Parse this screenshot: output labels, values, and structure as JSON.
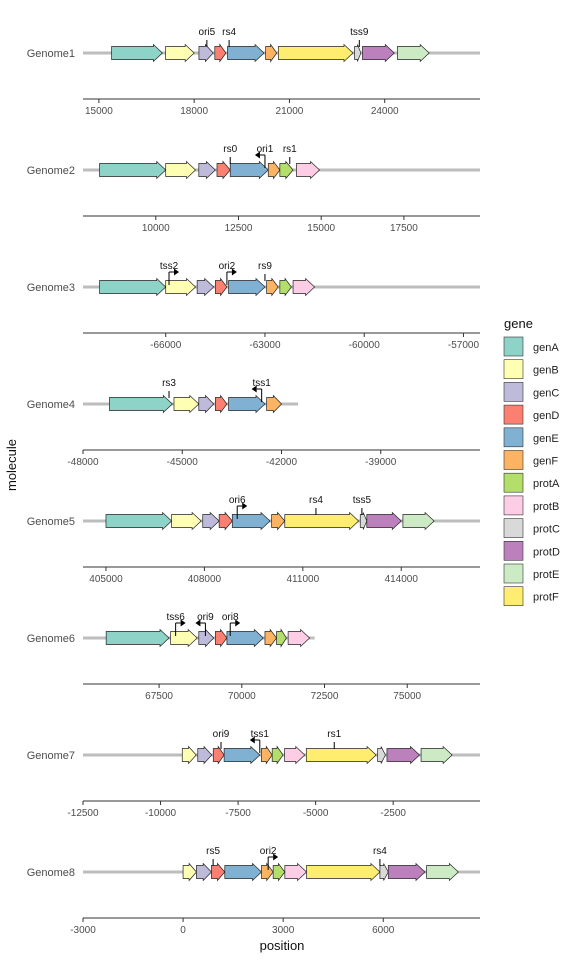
{
  "chart_data": {
    "type": "gene-arrow-map",
    "xlabel": "position",
    "ylabel": "molecule",
    "legend": {
      "title": "gene",
      "placement": "right",
      "entries": [
        {
          "name": "genA",
          "color": "#8dd3c7"
        },
        {
          "name": "genB",
          "color": "#ffffb3"
        },
        {
          "name": "genC",
          "color": "#bebada"
        },
        {
          "name": "genD",
          "color": "#fb8072"
        },
        {
          "name": "genE",
          "color": "#80b1d3"
        },
        {
          "name": "genF",
          "color": "#fdb462"
        },
        {
          "name": "protA",
          "color": "#b3de69"
        },
        {
          "name": "protB",
          "color": "#fccde5"
        },
        {
          "name": "protC",
          "color": "#d9d9d9"
        },
        {
          "name": "protD",
          "color": "#bc80bd"
        },
        {
          "name": "protE",
          "color": "#ccebc5"
        },
        {
          "name": "protF",
          "color": "#ffed6f"
        }
      ]
    },
    "panels": [
      {
        "molecule": "Genome1",
        "xlim": [
          14500,
          27000
        ],
        "xticks": [
          15000,
          18000,
          21000,
          24000
        ],
        "xtick_labels": [
          "15000",
          "18000",
          "21000",
          "24000"
        ],
        "backbone": [
          14500,
          27000
        ],
        "genes": [
          {
            "gene": "genA",
            "start": 15400,
            "end": 17000
          },
          {
            "gene": "genB",
            "start": 17100,
            "end": 18000
          },
          {
            "gene": "genC",
            "start": 18150,
            "end": 18600
          },
          {
            "gene": "genD",
            "start": 18650,
            "end": 19000
          },
          {
            "gene": "genE",
            "start": 19050,
            "end": 20200
          },
          {
            "gene": "genF",
            "start": 20250,
            "end": 20600
          },
          {
            "gene": "protF",
            "start": 20650,
            "end": 23000
          },
          {
            "gene": "protC",
            "start": 23050,
            "end": 23250
          },
          {
            "gene": "protD",
            "start": 23300,
            "end": 24300
          },
          {
            "gene": "protE",
            "start": 24400,
            "end": 25400
          }
        ],
        "features": [
          {
            "type": "label",
            "name": "ori5",
            "position": 18400
          },
          {
            "type": "label",
            "name": "rs4",
            "position": 19100
          },
          {
            "type": "label",
            "name": "tss9",
            "position": 23200
          }
        ]
      },
      {
        "molecule": "Genome2",
        "xlim": [
          7800,
          19800
        ],
        "xticks": [
          10000,
          12500,
          15000,
          17500
        ],
        "xtick_labels": [
          "10000",
          "12500",
          "15000",
          "17500"
        ],
        "backbone": [
          7800,
          19800
        ],
        "genes": [
          {
            "gene": "genA",
            "start": 8300,
            "end": 10300
          },
          {
            "gene": "genB",
            "start": 10300,
            "end": 11200
          },
          {
            "gene": "genC",
            "start": 11300,
            "end": 11800
          },
          {
            "gene": "genD",
            "start": 11850,
            "end": 12250
          },
          {
            "gene": "genE",
            "start": 12250,
            "end": 13400
          },
          {
            "gene": "genF",
            "start": 13400,
            "end": 13750
          },
          {
            "gene": "protA",
            "start": 13750,
            "end": 14150
          },
          {
            "gene": "protB",
            "start": 14250,
            "end": 14950
          }
        ],
        "features": [
          {
            "type": "label",
            "name": "rs0",
            "position": 12250
          },
          {
            "type": "arrow",
            "name": "ori1",
            "position": 13300,
            "direction": "left"
          },
          {
            "type": "label",
            "name": "rs1",
            "position": 14050
          }
        ]
      },
      {
        "molecule": "Genome3",
        "xlim": [
          -68500,
          -56500
        ],
        "xticks": [
          -66000,
          -63000,
          -60000,
          -57000
        ],
        "xtick_labels": [
          "-66000",
          "-63000",
          "-60000",
          "-57000"
        ],
        "backbone": [
          -68500,
          -56500
        ],
        "genes": [
          {
            "gene": "genA",
            "start": -68000,
            "end": -66000
          },
          {
            "gene": "genB",
            "start": -66000,
            "end": -65100
          },
          {
            "gene": "genC",
            "start": -65050,
            "end": -64550
          },
          {
            "gene": "genD",
            "start": -64500,
            "end": -64150
          },
          {
            "gene": "genE",
            "start": -64100,
            "end": -63000
          },
          {
            "gene": "genF",
            "start": -62950,
            "end": -62600
          },
          {
            "gene": "protA",
            "start": -62550,
            "end": -62200
          },
          {
            "gene": "protB",
            "start": -62150,
            "end": -61500
          }
        ],
        "features": [
          {
            "type": "arrow",
            "name": "tss2",
            "position": -65900,
            "direction": "right"
          },
          {
            "type": "arrow",
            "name": "ori2",
            "position": -64150,
            "direction": "right"
          },
          {
            "type": "label",
            "name": "rs9",
            "position": -63000
          }
        ]
      },
      {
        "molecule": "Genome4",
        "xlim": [
          -48000,
          -36000
        ],
        "xticks": [
          -48000,
          -45000,
          -42000,
          -39000
        ],
        "xtick_labels": [
          "-48000",
          "-45000",
          "-42000",
          "-39000"
        ],
        "backbone": [
          -48000,
          -41500
        ],
        "genes": [
          {
            "gene": "genA",
            "start": -47200,
            "end": -45300
          },
          {
            "gene": "genB",
            "start": -45250,
            "end": -44500
          },
          {
            "gene": "genC",
            "start": -44500,
            "end": -44050
          },
          {
            "gene": "genD",
            "start": -44000,
            "end": -43650
          },
          {
            "gene": "genE",
            "start": -43600,
            "end": -42500
          },
          {
            "gene": "genF",
            "start": -42450,
            "end": -42000
          }
        ],
        "features": [
          {
            "type": "label",
            "name": "rs3",
            "position": -45400
          },
          {
            "type": "arrow",
            "name": "tss1",
            "position": -42600,
            "direction": "left"
          }
        ]
      },
      {
        "molecule": "Genome5",
        "xlim": [
          404300,
          416400
        ],
        "xticks": [
          405000,
          408000,
          411000,
          414000
        ],
        "xtick_labels": [
          "405000",
          "408000",
          "411000",
          "414000"
        ],
        "backbone": [
          404300,
          416400
        ],
        "genes": [
          {
            "gene": "genA",
            "start": 405000,
            "end": 407000
          },
          {
            "gene": "genB",
            "start": 407000,
            "end": 407900
          },
          {
            "gene": "genC",
            "start": 407950,
            "end": 408450
          },
          {
            "gene": "genD",
            "start": 408450,
            "end": 408850
          },
          {
            "gene": "genE",
            "start": 408850,
            "end": 410000
          },
          {
            "gene": "genF",
            "start": 410050,
            "end": 410450
          },
          {
            "gene": "protF",
            "start": 410450,
            "end": 412700
          },
          {
            "gene": "protC",
            "start": 412750,
            "end": 412950
          },
          {
            "gene": "protD",
            "start": 412950,
            "end": 414000
          },
          {
            "gene": "protE",
            "start": 414050,
            "end": 415000
          }
        ],
        "features": [
          {
            "type": "arrow",
            "name": "ori6",
            "position": 409000,
            "direction": "right"
          },
          {
            "type": "label",
            "name": "rs4",
            "position": 411400
          },
          {
            "type": "label",
            "name": "tss5",
            "position": 412800
          }
        ]
      },
      {
        "molecule": "Genome6",
        "xlim": [
          65200,
          77200
        ],
        "xticks": [
          67500,
          70000,
          72500,
          75000
        ],
        "xtick_labels": [
          "67500",
          "70000",
          "72500",
          "75000"
        ],
        "backbone": [
          65200,
          72200
        ],
        "genes": [
          {
            "gene": "genA",
            "start": 65900,
            "end": 67800
          },
          {
            "gene": "genB",
            "start": 67850,
            "end": 68650
          },
          {
            "gene": "genC",
            "start": 68700,
            "end": 69150
          },
          {
            "gene": "genD",
            "start": 69200,
            "end": 69550
          },
          {
            "gene": "genE",
            "start": 69550,
            "end": 70650
          },
          {
            "gene": "genF",
            "start": 70700,
            "end": 71050
          },
          {
            "gene": "protA",
            "start": 71050,
            "end": 71350
          },
          {
            "gene": "protB",
            "start": 71400,
            "end": 72050
          }
        ],
        "features": [
          {
            "type": "arrow",
            "name": "tss6",
            "position": 68000,
            "direction": "right"
          },
          {
            "type": "arrow",
            "name": "ori9",
            "position": 68900,
            "direction": "left"
          },
          {
            "type": "arrow",
            "name": "ori8",
            "position": 69650,
            "direction": "right"
          }
        ]
      },
      {
        "molecule": "Genome7",
        "xlim": [
          -12500,
          300
        ],
        "xticks": [
          -12500,
          -10000,
          -7500,
          -5000,
          -2500
        ],
        "xtick_labels": [
          "-12500",
          "-10000",
          "-7500",
          "-5000",
          "-2500"
        ],
        "backbone": [
          -12500,
          300
        ],
        "genes": [
          {
            "gene": "genB",
            "start": -9300,
            "end": -8850
          },
          {
            "gene": "genC",
            "start": -8800,
            "end": -8350
          },
          {
            "gene": "genD",
            "start": -8300,
            "end": -7950
          },
          {
            "gene": "genE",
            "start": -7950,
            "end": -6800
          },
          {
            "gene": "genF",
            "start": -6750,
            "end": -6400
          },
          {
            "gene": "protA",
            "start": -6400,
            "end": -6050
          },
          {
            "gene": "protB",
            "start": -6000,
            "end": -5350
          },
          {
            "gene": "protF",
            "start": -5300,
            "end": -3050
          },
          {
            "gene": "protC",
            "start": -3000,
            "end": -2750
          },
          {
            "gene": "protD",
            "start": -2700,
            "end": -1650
          },
          {
            "gene": "protE",
            "start": -1600,
            "end": -600
          }
        ],
        "features": [
          {
            "type": "label",
            "name": "ori9",
            "position": -8050
          },
          {
            "type": "arrow",
            "name": "tss1",
            "position": -6800,
            "direction": "left"
          },
          {
            "type": "label",
            "name": "rs1",
            "position": -4400
          }
        ]
      },
      {
        "molecule": "Genome8",
        "xlim": [
          -3000,
          8900
        ],
        "xticks": [
          -3000,
          0,
          3000,
          6000
        ],
        "xtick_labels": [
          "-3000",
          "0",
          "3000",
          "6000"
        ],
        "backbone": [
          -3000,
          8900
        ],
        "genes": [
          {
            "gene": "genB",
            "start": 0,
            "end": 400
          },
          {
            "gene": "genC",
            "start": 400,
            "end": 850
          },
          {
            "gene": "genD",
            "start": 850,
            "end": 1250
          },
          {
            "gene": "genE",
            "start": 1250,
            "end": 2350
          },
          {
            "gene": "genF",
            "start": 2350,
            "end": 2700
          },
          {
            "gene": "protA",
            "start": 2700,
            "end": 3050
          },
          {
            "gene": "protB",
            "start": 3050,
            "end": 3700
          },
          {
            "gene": "protF",
            "start": 3700,
            "end": 5900
          },
          {
            "gene": "protC",
            "start": 5900,
            "end": 6150
          },
          {
            "gene": "protD",
            "start": 6150,
            "end": 7250
          },
          {
            "gene": "protE",
            "start": 7300,
            "end": 8250
          }
        ],
        "features": [
          {
            "type": "label",
            "name": "rs5",
            "position": 900
          },
          {
            "type": "arrow",
            "name": "ori2",
            "position": 2550,
            "direction": "right"
          },
          {
            "type": "label",
            "name": "rs4",
            "position": 5900
          }
        ]
      }
    ]
  }
}
